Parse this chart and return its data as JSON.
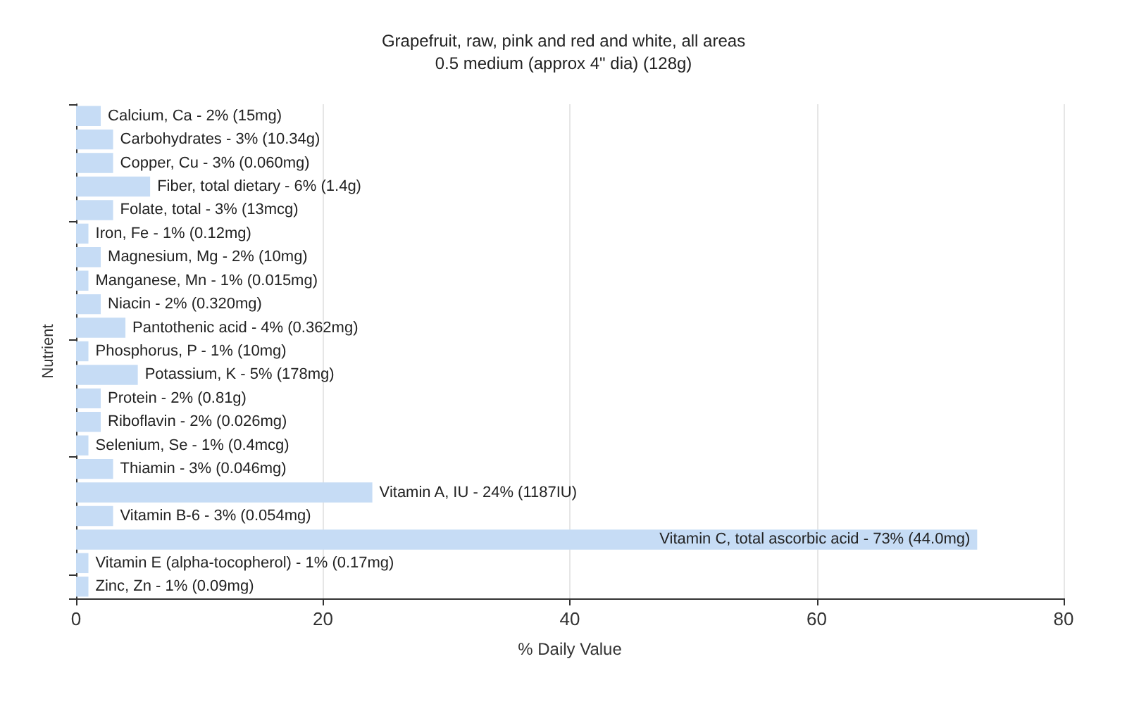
{
  "chart_data": {
    "type": "bar",
    "orientation": "horizontal",
    "title": "Grapefruit, raw, pink and red and white, all areas",
    "subtitle": "0.5 medium (approx 4\" dia) (128g)",
    "xlabel": "% Daily Value",
    "ylabel": "Nutrient",
    "categories": [
      "Calcium, Ca - 2% (15mg)",
      "Carbohydrates - 3% (10.34g)",
      "Copper, Cu - 3% (0.060mg)",
      "Fiber, total dietary - 6% (1.4g)",
      "Folate, total - 3% (13mcg)",
      "Iron, Fe - 1% (0.12mg)",
      "Magnesium, Mg - 2% (10mg)",
      "Manganese, Mn - 1% (0.015mg)",
      "Niacin - 2% (0.320mg)",
      "Pantothenic acid - 4% (0.362mg)",
      "Phosphorus, P - 1% (10mg)",
      "Potassium, K - 5% (178mg)",
      "Protein - 2% (0.81g)",
      "Riboflavin - 2% (0.026mg)",
      "Selenium, Se - 1% (0.4mcg)",
      "Thiamin - 3% (0.046mg)",
      "Vitamin A, IU - 24% (1187IU)",
      "Vitamin B-6 - 3% (0.054mg)",
      "Vitamin C, total ascorbic acid - 73% (44.0mg)",
      "Vitamin E (alpha-tocopherol) - 1% (0.17mg)",
      "Zinc, Zn - 1% (0.09mg)"
    ],
    "values": [
      2,
      3,
      3,
      6,
      3,
      1,
      2,
      1,
      2,
      4,
      1,
      5,
      2,
      2,
      1,
      3,
      24,
      3,
      73,
      1,
      1
    ],
    "color": "#c6dcf5",
    "xlim": [
      0,
      80
    ],
    "xticks": [
      0,
      20,
      40,
      60,
      80
    ],
    "grid": "x",
    "tick_labels": "x"
  }
}
